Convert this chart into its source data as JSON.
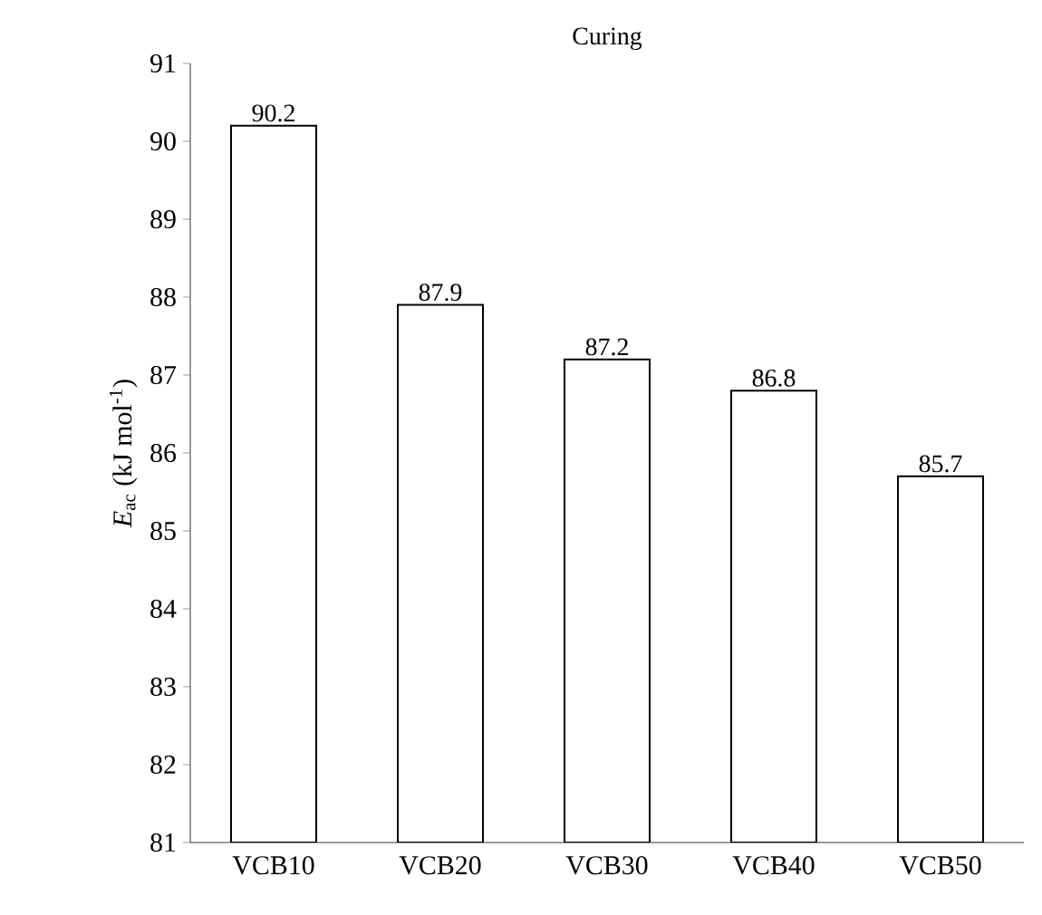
{
  "chart_data": {
    "type": "bar",
    "title": "Curing",
    "ylabel": "*E*$_{ac}$ (kJ mol$^{-1}$)",
    "categories": [
      "VCB10",
      "VCB20",
      "VCB30",
      "VCB40",
      "VCB50"
    ],
    "values": [
      90.2,
      87.9,
      87.2,
      86.8,
      85.7
    ],
    "color": "#ffffff",
    "ylim": [
      81,
      91
    ],
    "yticks": [
      81,
      82,
      83,
      84,
      85,
      86,
      87,
      88,
      89,
      90,
      91
    ],
    "data_labels": true
  }
}
